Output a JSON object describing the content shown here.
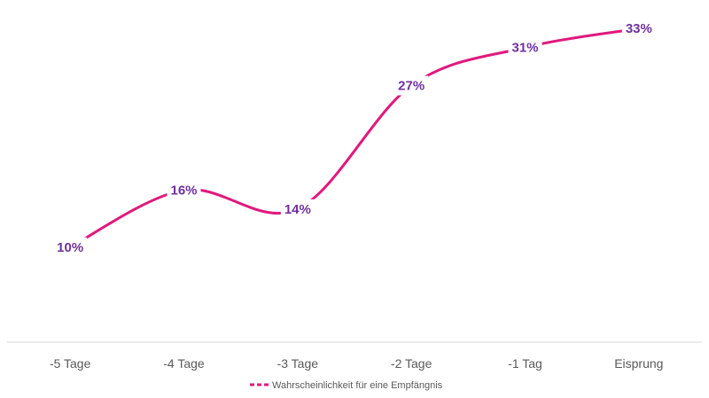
{
  "chart_data": {
    "type": "line",
    "categories": [
      "-5 Tage",
      "-4 Tage",
      "-3 Tage",
      "-2 Tage",
      "-1 Tag",
      "Eisprung"
    ],
    "series": [
      {
        "name": "Wahrscheinlichkeit für eine Empfängnis",
        "values": [
          10,
          16,
          14,
          27,
          31,
          33
        ],
        "data_labels": [
          "10%",
          "16%",
          "14%",
          "27%",
          "31%",
          "33%"
        ]
      }
    ],
    "ylim": [
      0,
      36
    ],
    "smooth": true,
    "grid": false,
    "legend_position": "bottom",
    "line_color": "#E0197D",
    "label_color": "#7030A0",
    "axis_color": "#D9D9D9"
  }
}
